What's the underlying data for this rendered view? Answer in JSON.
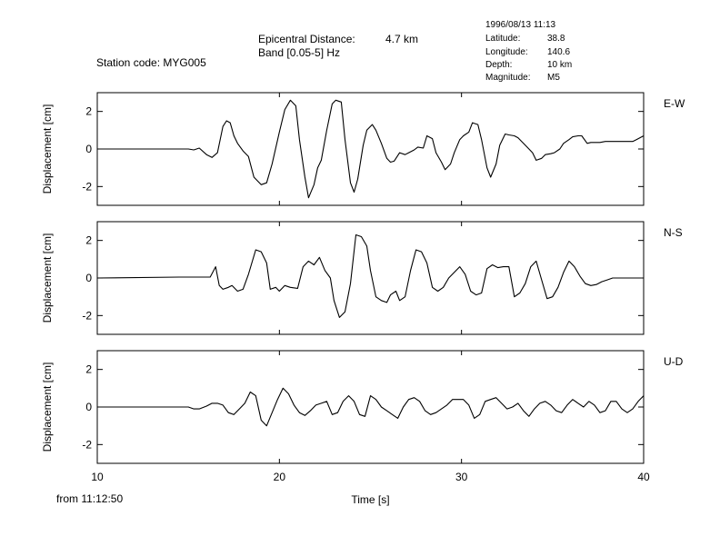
{
  "header": {
    "station": "Station code: MYG005",
    "epicentral_label": "Epicentral Distance:",
    "epicentral_value": "4.7 km",
    "band": "Band [0.05-5] Hz",
    "event_time": "1996/08/13 11:13",
    "latitude_label": "Latitude:",
    "latitude_value": "38.8",
    "longitude_label": "Longitude:",
    "longitude_value": "140.6",
    "depth_label": "Depth:",
    "depth_value": "10 km",
    "magnitude_label": "Magnitude:",
    "magnitude_value": "M5"
  },
  "footer": {
    "start_time": "from 11:12:50"
  },
  "chart_data": [
    {
      "type": "line",
      "component": "E-W",
      "xlabel": "",
      "ylabel": "Displacement [cm]",
      "xlim": [
        10,
        40
      ],
      "ylim": [
        -3,
        3
      ],
      "yticks": [
        2,
        0,
        -2
      ],
      "x": [
        10,
        15,
        15.3,
        15.6,
        16,
        16.3,
        16.6,
        16.9,
        17.1,
        17.3,
        17.5,
        17.7,
        18,
        18.3,
        18.6,
        19,
        19.3,
        19.6,
        20,
        20.3,
        20.6,
        20.9,
        21.1,
        21.4,
        21.6,
        21.9,
        22.1,
        22.3,
        22.6,
        22.9,
        23.1,
        23.4,
        23.6,
        23.9,
        24.1,
        24.3,
        24.6,
        24.8,
        25.1,
        25.3,
        25.6,
        25.9,
        26.1,
        26.3,
        26.6,
        26.9,
        27.1,
        27.4,
        27.6,
        27.9,
        28.1,
        28.4,
        28.6,
        28.9,
        29.1,
        29.4,
        29.6,
        29.9,
        30.1,
        30.4,
        30.6,
        30.9,
        31.1,
        31.4,
        31.6,
        31.9,
        32.1,
        32.4,
        32.6,
        32.9,
        33.1,
        33.4,
        33.6,
        33.9,
        34.1,
        34.4,
        34.6,
        34.9,
        35.1,
        35.4,
        35.6,
        35.9,
        36.1,
        36.4,
        36.6,
        36.9,
        37.1,
        37.4,
        37.6,
        37.9,
        38.1,
        38.4,
        38.6,
        38.9,
        39.1,
        39.4,
        39.6,
        40
      ],
      "values": [
        0,
        0,
        -0.05,
        0.05,
        -0.3,
        -0.45,
        -0.2,
        1.2,
        1.5,
        1.4,
        0.7,
        0.3,
        -0.1,
        -0.4,
        -1.5,
        -1.9,
        -1.8,
        -0.8,
        0.9,
        2.1,
        2.6,
        2.3,
        0.5,
        -1.5,
        -2.6,
        -1.9,
        -1,
        -0.6,
        1,
        2.4,
        2.6,
        2.5,
        0.5,
        -1.8,
        -2.3,
        -1.6,
        0.2,
        1,
        1.3,
        1,
        0.3,
        -0.5,
        -0.7,
        -0.65,
        -0.2,
        -0.3,
        -0.2,
        -0.05,
        0.1,
        0.05,
        0.7,
        0.55,
        -0.2,
        -0.7,
        -1.1,
        -0.8,
        -0.2,
        0.5,
        0.7,
        0.9,
        1.4,
        1.3,
        0.5,
        -1,
        -1.5,
        -0.8,
        0.2,
        0.8,
        0.75,
        0.7,
        0.6,
        0.3,
        0.1,
        -0.2,
        -0.6,
        -0.5,
        -0.3,
        -0.25,
        -0.2,
        0,
        0.3,
        0.5,
        0.65,
        0.7,
        0.7,
        0.3,
        0.35,
        0.35,
        0.35,
        0.4,
        0.4,
        0.4,
        0.4,
        0.4,
        0.4,
        0.4,
        0.5,
        0.7
      ],
      "label": "E-W"
    },
    {
      "type": "line",
      "component": "N-S",
      "xlabel": "",
      "ylabel": "Displacement [cm]",
      "xlim": [
        10,
        40
      ],
      "ylim": [
        -3,
        3
      ],
      "yticks": [
        2,
        0,
        -2
      ],
      "x": [
        10,
        14.5,
        15,
        15.4,
        15.8,
        16.2,
        16.5,
        16.7,
        16.9,
        17.2,
        17.4,
        17.7,
        18,
        18.3,
        18.7,
        19,
        19.3,
        19.5,
        19.8,
        20,
        20.3,
        20.6,
        21,
        21.3,
        21.6,
        21.9,
        22.2,
        22.5,
        22.8,
        23,
        23.3,
        23.6,
        23.9,
        24.2,
        24.5,
        24.8,
        25,
        25.3,
        25.6,
        25.9,
        26.1,
        26.4,
        26.6,
        26.9,
        27.2,
        27.5,
        27.8,
        28.1,
        28.4,
        28.7,
        29,
        29.3,
        29.6,
        29.9,
        30.2,
        30.5,
        30.8,
        31.1,
        31.4,
        31.7,
        32,
        32.3,
        32.6,
        32.9,
        33.2,
        33.5,
        33.8,
        34.1,
        34.4,
        34.7,
        35,
        35.3,
        35.6,
        35.9,
        36.2,
        36.5,
        36.8,
        37.1,
        37.4,
        37.7,
        38,
        38.3,
        38.6,
        38.9,
        39.2,
        39.5,
        39.8,
        40
      ],
      "values": [
        0,
        0.05,
        0.05,
        0.05,
        0.05,
        0.05,
        0.6,
        -0.4,
        -0.6,
        -0.5,
        -0.4,
        -0.7,
        -0.6,
        0.2,
        1.5,
        1.4,
        0.8,
        -0.6,
        -0.5,
        -0.7,
        -0.4,
        -0.5,
        -0.55,
        0.6,
        0.9,
        0.7,
        1.1,
        0.4,
        0,
        -1.2,
        -2.1,
        -1.8,
        -0.3,
        2.3,
        2.2,
        1.7,
        0.4,
        -1,
        -1.2,
        -1.3,
        -0.9,
        -0.7,
        -1.2,
        -1,
        0.4,
        1.5,
        1.4,
        0.8,
        -0.5,
        -0.7,
        -0.5,
        0,
        0.3,
        0.6,
        0.2,
        -0.7,
        -0.9,
        -0.8,
        0.5,
        0.7,
        0.55,
        0.6,
        0.6,
        -1,
        -0.8,
        -0.3,
        0.6,
        0.9,
        -0.1,
        -1.1,
        -1,
        -0.5,
        0.3,
        0.9,
        0.6,
        0.1,
        -0.3,
        -0.4,
        -0.35,
        -0.2,
        -0.1,
        0,
        0,
        0,
        0,
        0,
        0,
        0
      ],
      "label": "N-S"
    },
    {
      "type": "line",
      "component": "U-D",
      "xlabel": "Time [s]",
      "ylabel": "Displacement [cm]",
      "xlim": [
        10,
        40
      ],
      "ylim": [
        -3,
        3
      ],
      "xticks": [
        10,
        20,
        30,
        40
      ],
      "yticks": [
        2,
        0,
        -2
      ],
      "x": [
        10,
        14.5,
        15,
        15.3,
        15.6,
        16,
        16.3,
        16.6,
        16.9,
        17.2,
        17.5,
        17.8,
        18.1,
        18.4,
        18.7,
        19,
        19.3,
        19.6,
        19.9,
        20.2,
        20.5,
        20.8,
        21.1,
        21.4,
        21.7,
        22,
        22.3,
        22.6,
        22.9,
        23.2,
        23.5,
        23.8,
        24.1,
        24.4,
        24.7,
        25,
        25.3,
        25.6,
        25.9,
        26.2,
        26.5,
        26.8,
        27.1,
        27.4,
        27.7,
        28,
        28.3,
        28.6,
        28.9,
        29.2,
        29.5,
        29.8,
        30.1,
        30.4,
        30.7,
        31,
        31.3,
        31.6,
        31.9,
        32.2,
        32.5,
        32.8,
        33.1,
        33.4,
        33.7,
        34,
        34.3,
        34.6,
        34.9,
        35.2,
        35.5,
        35.8,
        36.1,
        36.4,
        36.7,
        37,
        37.3,
        37.6,
        37.9,
        38.2,
        38.5,
        38.8,
        39.1,
        39.4,
        39.7,
        40
      ],
      "values": [
        0,
        0,
        0,
        -0.1,
        -0.1,
        0.05,
        0.2,
        0.2,
        0.1,
        -0.3,
        -0.4,
        -0.1,
        0.2,
        0.8,
        0.6,
        -0.7,
        -1,
        -0.3,
        0.4,
        1,
        0.7,
        0.1,
        -0.3,
        -0.45,
        -0.2,
        0.1,
        0.2,
        0.3,
        -0.4,
        -0.3,
        0.3,
        0.6,
        0.3,
        -0.4,
        -0.5,
        0.6,
        0.4,
        0,
        -0.2,
        -0.4,
        -0.6,
        0,
        0.4,
        0.5,
        0.3,
        -0.2,
        -0.4,
        -0.3,
        -0.1,
        0.1,
        0.4,
        0.4,
        0.4,
        0.1,
        -0.6,
        -0.4,
        0.3,
        0.4,
        0.5,
        0.2,
        -0.1,
        0,
        0.2,
        -0.2,
        -0.5,
        -0.1,
        0.2,
        0.3,
        0.1,
        -0.2,
        -0.3,
        0.1,
        0.4,
        0.2,
        0,
        0.3,
        0.1,
        -0.3,
        -0.2,
        0.3,
        0.3,
        -0.1,
        -0.3,
        -0.1,
        0.3,
        0.6
      ],
      "label": "U-D"
    }
  ]
}
